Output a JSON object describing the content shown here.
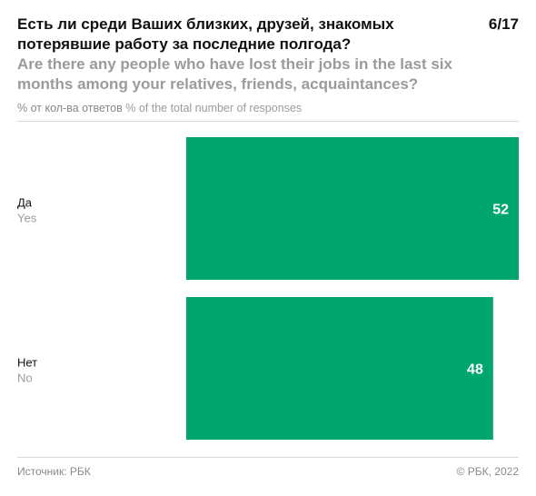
{
  "header": {
    "title_ru": "Есть ли среди Ваших близких, друзей, знакомых потерявшие работу за последние полгода?",
    "title_en": "Are there any people who have lost their jobs in the last six months among your relatives, friends, acquaintances?",
    "page": "6/17",
    "subtitle_ru": "% от кол-ва ответов",
    "subtitle_en": "% of the total number of responses"
  },
  "footer": {
    "source": "Источник: РБК",
    "copyright": "© РБК, 2022"
  },
  "colors": {
    "bar": "#00a66e",
    "value_text": "#ffffff",
    "label_ru": "#111111",
    "label_en": "#9b9b9b"
  },
  "chart_data": {
    "type": "bar",
    "orientation": "horizontal",
    "categories": [
      "Да",
      "Нет"
    ],
    "categories_en": [
      "Yes",
      "No"
    ],
    "values": [
      52,
      48
    ],
    "xlim": [
      0,
      52
    ],
    "grid": false,
    "legend": "none"
  }
}
